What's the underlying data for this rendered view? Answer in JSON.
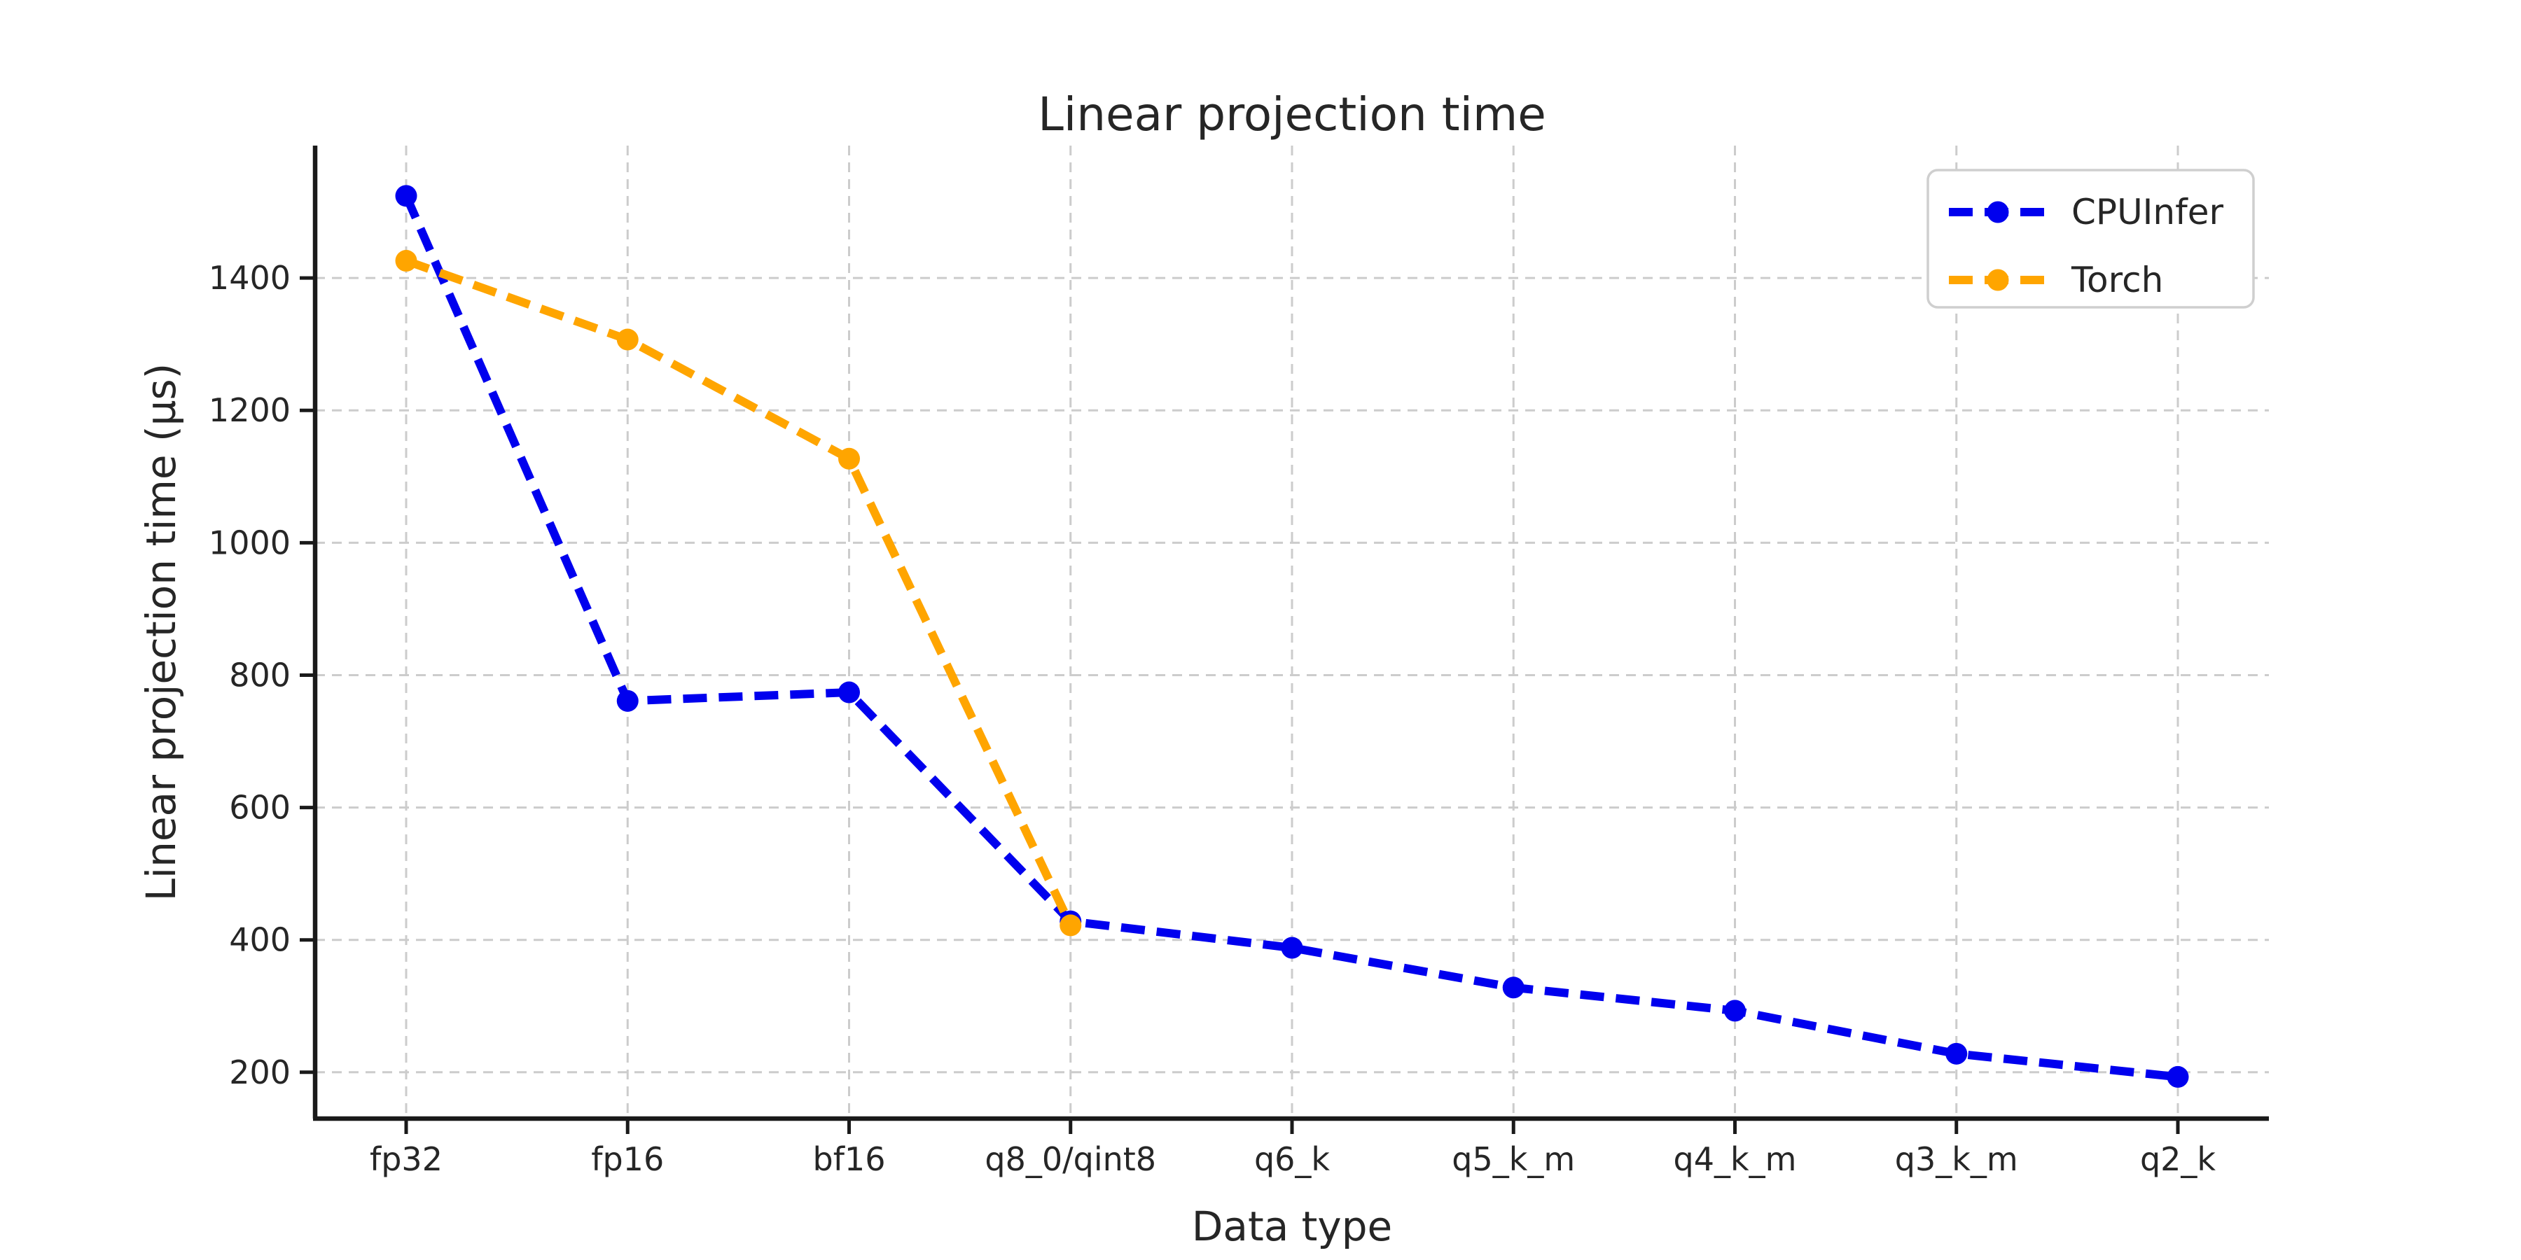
{
  "chart_data": {
    "type": "line",
    "title": "Linear projection time",
    "xlabel": "Data type",
    "ylabel": "Linear projection time (µs)",
    "categories": [
      "fp32",
      "fp16",
      "bf16",
      "q8_0/qint8",
      "q6_k",
      "q5_k_m",
      "q4_k_m",
      "q3_k_m",
      "q2_k"
    ],
    "series": [
      {
        "name": "CPUInfer",
        "color": "#0000ee",
        "values": [
          1524,
          761,
          774,
          428,
          388,
          328,
          293,
          228,
          193
        ]
      },
      {
        "name": "Torch",
        "color": "#ffa500",
        "values": [
          1426,
          1307,
          1127,
          422
        ]
      }
    ],
    "yticks": [
      200,
      400,
      600,
      800,
      1000,
      1200,
      1400
    ],
    "ylim": [
      130,
      1600
    ],
    "grid": true,
    "grid_style": "dashed",
    "grid_color": "#cccccc",
    "line_style": "dashed",
    "marker": "circle",
    "legend_position": "upper right",
    "spine_color": "#1a1a1a",
    "text_color": "#262626"
  }
}
